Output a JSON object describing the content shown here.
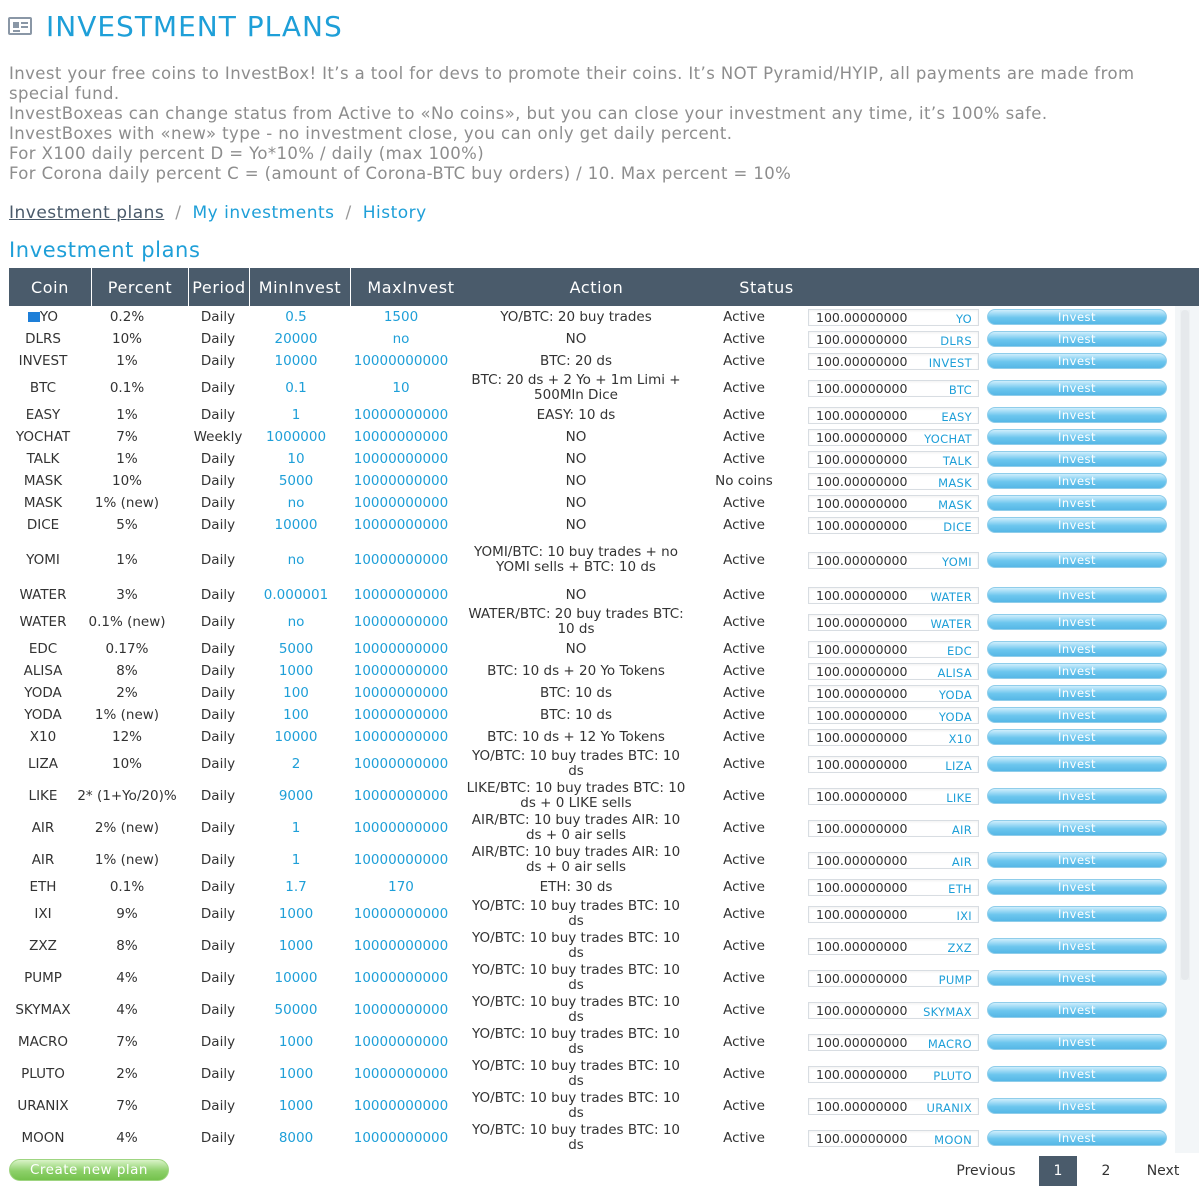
{
  "header": {
    "title": "INVESTMENT PLANS",
    "icon": "list-box-icon"
  },
  "intro": [
    "Invest your free coins to InvestBox! It’s a tool for devs to promote their coins. It’s NOT Pyramid/HYIP, all payments are made from special fund.",
    "InvestBoxeas can change status from Active to «No coins», but you can close your investment any time, it’s 100% safe.",
    "InvestBoxes with «new» type - no investment close, you can only get daily percent.",
    "For X100 daily percent D = Yo*10% / daily (max 100%)",
    "For Corona daily percent C = (amount of Corona-BTC buy orders) / 10. Max percent = 10%"
  ],
  "breadcrumbs": {
    "plans": "Investment plans",
    "mine": "My investments",
    "history": "History",
    "separator": "/"
  },
  "section_title": "Investment plans",
  "columns": {
    "coin": "Coin",
    "percent": "Percent",
    "period": "Period",
    "min": "MinInvest",
    "max": "MaxInvest",
    "action": "Action",
    "status": "Status"
  },
  "invest_label": "Invest",
  "default_amount": "100.00000000",
  "rows": [
    {
      "coin": "YO",
      "percent": "0.2%",
      "period": "Daily",
      "min": "0.5",
      "max": "1500",
      "action": "YO/BTC: 20 buy trades",
      "status": "Active",
      "sym": "YO"
    },
    {
      "coin": "DLRS",
      "percent": "10%",
      "period": "Daily",
      "min": "20000",
      "max": "no",
      "action": "NO",
      "status": "Active",
      "sym": "DLRS"
    },
    {
      "coin": "INVEST",
      "percent": "1%",
      "period": "Daily",
      "min": "10000",
      "max": "10000000000",
      "action": "BTC: 20 ds",
      "status": "Active",
      "sym": "INVEST"
    },
    {
      "coin": "BTC",
      "percent": "0.1%",
      "period": "Daily",
      "min": "0.1",
      "max": "10",
      "action": "BTC: 20 ds + 2 Yo + 1m Limi + 500Mln Dice",
      "status": "Active",
      "sym": "BTC"
    },
    {
      "coin": "EASY",
      "percent": "1%",
      "period": "Daily",
      "min": "1",
      "max": "10000000000",
      "action": "EASY: 10 ds",
      "status": "Active",
      "sym": "EASY"
    },
    {
      "coin": "YOCHAT",
      "percent": "7%",
      "period": "Weekly",
      "min": "1000000",
      "max": "10000000000",
      "action": "NO",
      "status": "Active",
      "sym": "YOCHAT"
    },
    {
      "coin": "TALK",
      "percent": "1%",
      "period": "Daily",
      "min": "10",
      "max": "10000000000",
      "action": "NO",
      "status": "Active",
      "sym": "TALK"
    },
    {
      "coin": "MASK",
      "percent": "10%",
      "period": "Daily",
      "min": "5000",
      "max": "10000000000",
      "action": "NO",
      "status": "No coins",
      "sym": "MASK"
    },
    {
      "coin": "MASK",
      "percent": "1% (new)",
      "period": "Daily",
      "min": "no",
      "max": "10000000000",
      "action": "NO",
      "status": "Active",
      "sym": "MASK"
    },
    {
      "coin": "DICE",
      "percent": "5%",
      "period": "Daily",
      "min": "10000",
      "max": "10000000000",
      "action": "NO",
      "status": "Active",
      "sym": "DICE"
    },
    {
      "coin": "YOMI",
      "percent": "1%",
      "period": "Daily",
      "min": "no",
      "max": "10000000000",
      "action": "YOMI/BTC: 10 buy trades + no YOMI sells + BTC: 10 ds",
      "status": "Active",
      "sym": "YOMI"
    },
    {
      "coin": "WATER",
      "percent": "3%",
      "period": "Daily",
      "min": "0.000001",
      "max": "10000000000",
      "action": "NO",
      "status": "Active",
      "sym": "WATER"
    },
    {
      "coin": "WATER",
      "percent": "0.1% (new)",
      "period": "Daily",
      "min": "no",
      "max": "10000000000",
      "action": "WATER/BTC: 20 buy trades BTC: 10 ds",
      "status": "Active",
      "sym": "WATER"
    },
    {
      "coin": "EDC",
      "percent": "0.17%",
      "period": "Daily",
      "min": "5000",
      "max": "10000000000",
      "action": "NO",
      "status": "Active",
      "sym": "EDC"
    },
    {
      "coin": "ALISA",
      "percent": "8%",
      "period": "Daily",
      "min": "1000",
      "max": "10000000000",
      "action": "BTC: 10 ds + 20 Yo Tokens",
      "status": "Active",
      "sym": "ALISA"
    },
    {
      "coin": "YODA",
      "percent": "2%",
      "period": "Daily",
      "min": "100",
      "max": "10000000000",
      "action": "BTC: 10 ds",
      "status": "Active",
      "sym": "YODA"
    },
    {
      "coin": "YODA",
      "percent": "1% (new)",
      "period": "Daily",
      "min": "100",
      "max": "10000000000",
      "action": "BTC: 10 ds",
      "status": "Active",
      "sym": "YODA"
    },
    {
      "coin": "X10",
      "percent": "12%",
      "period": "Daily",
      "min": "10000",
      "max": "10000000000",
      "action": "BTC: 10 ds + 12 Yo Tokens",
      "status": "Active",
      "sym": "X10"
    },
    {
      "coin": "LIZA",
      "percent": "10%",
      "period": "Daily",
      "min": "2",
      "max": "10000000000",
      "action": "YO/BTC: 10 buy trades BTC: 10 ds",
      "status": "Active",
      "sym": "LIZA"
    },
    {
      "coin": "LIKE",
      "percent": "2* (1+Yo/20)%",
      "period": "Daily",
      "min": "9000",
      "max": "10000000000",
      "action": "LIKE/BTC: 10 buy trades BTC: 10 ds + 0 LIKE sells",
      "status": "Active",
      "sym": "LIKE"
    },
    {
      "coin": "AIR",
      "percent": "2% (new)",
      "period": "Daily",
      "min": "1",
      "max": "10000000000",
      "action": "AIR/BTC: 10 buy trades AIR: 10 ds + 0 air sells",
      "status": "Active",
      "sym": "AIR"
    },
    {
      "coin": "AIR",
      "percent": "1% (new)",
      "period": "Daily",
      "min": "1",
      "max": "10000000000",
      "action": "AIR/BTC: 10 buy trades AIR: 10 ds + 0 air sells",
      "status": "Active",
      "sym": "AIR"
    },
    {
      "coin": "ETH",
      "percent": "0.1%",
      "period": "Daily",
      "min": "1.7",
      "max": "170",
      "action": "ETH: 30 ds",
      "status": "Active",
      "sym": "ETH"
    },
    {
      "coin": "IXI",
      "percent": "9%",
      "period": "Daily",
      "min": "1000",
      "max": "10000000000",
      "action": "YO/BTC: 10 buy trades BTC: 10 ds",
      "status": "Active",
      "sym": "IXI"
    },
    {
      "coin": "ZXZ",
      "percent": "8%",
      "period": "Daily",
      "min": "1000",
      "max": "10000000000",
      "action": "YO/BTC: 10 buy trades BTC: 10 ds",
      "status": "Active",
      "sym": "ZXZ"
    },
    {
      "coin": "PUMP",
      "percent": "4%",
      "period": "Daily",
      "min": "10000",
      "max": "10000000000",
      "action": "YO/BTC: 10 buy trades BTC: 10 ds",
      "status": "Active",
      "sym": "PUMP"
    },
    {
      "coin": "SKYMAX",
      "percent": "4%",
      "period": "Daily",
      "min": "50000",
      "max": "10000000000",
      "action": "YO/BTC: 10 buy trades BTC: 10 ds",
      "status": "Active",
      "sym": "SKYMAX"
    },
    {
      "coin": "MACRO",
      "percent": "7%",
      "period": "Daily",
      "min": "1000",
      "max": "10000000000",
      "action": "YO/BTC: 10 buy trades BTC: 10 ds",
      "status": "Active",
      "sym": "MACRO"
    },
    {
      "coin": "PLUTO",
      "percent": "2%",
      "period": "Daily",
      "min": "1000",
      "max": "10000000000",
      "action": "YO/BTC: 10 buy trades BTC: 10 ds",
      "status": "Active",
      "sym": "PLUTO"
    },
    {
      "coin": "URANIX",
      "percent": "7%",
      "period": "Daily",
      "min": "1000",
      "max": "10000000000",
      "action": "YO/BTC: 10 buy trades BTC: 10 ds",
      "status": "Active",
      "sym": "URANIX"
    },
    {
      "coin": "MOON",
      "percent": "4%",
      "period": "Daily",
      "min": "8000",
      "max": "10000000000",
      "action": "YO/BTC: 10 buy trades BTC: 10 ds",
      "status": "Active",
      "sym": "MOON"
    }
  ],
  "footer": {
    "create_label": "Create new plan",
    "previous": "Previous",
    "page1": "1",
    "page2": "2",
    "next": "Next"
  }
}
